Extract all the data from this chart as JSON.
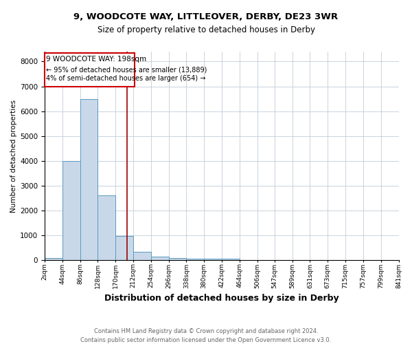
{
  "title1": "9, WOODCOTE WAY, LITTLEOVER, DERBY, DE23 3WR",
  "title2": "Size of property relative to detached houses in Derby",
  "xlabel": "Distribution of detached houses by size in Derby",
  "ylabel": "Number of detached properties",
  "footnote1": "Contains HM Land Registry data © Crown copyright and database right 2024.",
  "footnote2": "Contains public sector information licensed under the Open Government Licence v3.0.",
  "annotation_line1": "9 WOODCOTE WAY: 198sqm",
  "annotation_line2": "← 95% of detached houses are smaller (13,889)",
  "annotation_line3": "4% of semi-detached houses are larger (654) →",
  "property_size": 198,
  "bar_edges": [
    2,
    44,
    86,
    128,
    170,
    212,
    254,
    296,
    338,
    380,
    422,
    464,
    506,
    547,
    589,
    631,
    673,
    715,
    757,
    799,
    841
  ],
  "bar_heights": [
    80,
    4000,
    6500,
    2600,
    980,
    330,
    130,
    90,
    60,
    50,
    60,
    10,
    5,
    3,
    2,
    2,
    1,
    1,
    1,
    1
  ],
  "bar_color": "#c8d8e8",
  "bar_edgecolor": "#5a9abf",
  "redline_color": "#990000",
  "annotation_box_edgecolor": "#cc0000",
  "ylim": [
    0,
    8400
  ],
  "yticks": [
    0,
    1000,
    2000,
    3000,
    4000,
    5000,
    6000,
    7000,
    8000
  ],
  "background_color": "#ffffff",
  "grid_color": "#c0ccd8",
  "title1_fontsize": 9.5,
  "title2_fontsize": 8.5,
  "xlabel_fontsize": 9,
  "ylabel_fontsize": 7.5,
  "ytick_fontsize": 7.5,
  "xtick_fontsize": 6.5,
  "footnote_fontsize": 6,
  "footnote_color": "#666666"
}
